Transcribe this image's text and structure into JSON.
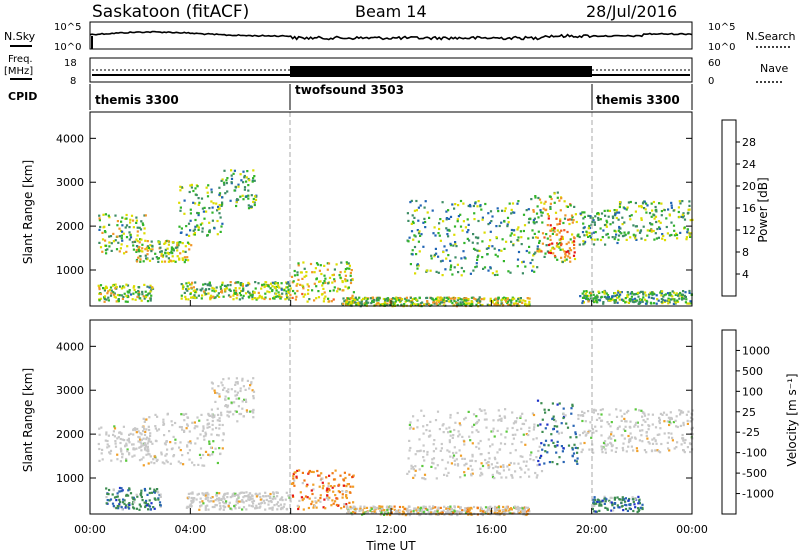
{
  "header": {
    "station": "Saskatoon (fitACF)",
    "beam": "Beam 14",
    "date": "28/Jul/2016"
  },
  "labels": {
    "nsky": "N.Sky",
    "nsearch": "N.Search",
    "freq_line1": "Freq.",
    "freq_line2": "[MHz]",
    "nave": "Nave",
    "cpid": "CPID"
  },
  "noise_panel": {
    "left_ticks": [
      "10^5",
      "10^0"
    ],
    "right_ticks": [
      "10^5",
      "10^0"
    ]
  },
  "freq_panel": {
    "left_ticks": [
      "18",
      "8"
    ],
    "right_ticks": [
      "60",
      "0"
    ]
  },
  "cpid_segments": [
    {
      "label": "themis 3300",
      "start_h": 0,
      "end_h": 8
    },
    {
      "label": "twofsound 3503",
      "start_h": 8,
      "end_h": 20
    },
    {
      "label": "themis 3300",
      "start_h": 20,
      "end_h": 24
    }
  ],
  "chart_data": [
    {
      "type": "heatmap",
      "name": "power",
      "xlabel": "",
      "ylabel": "Slant Range [km]",
      "xlim": [
        0,
        24
      ],
      "ylim": [
        180,
        4600
      ],
      "yticks": [
        1000,
        2000,
        3000,
        4000
      ],
      "colorbar": {
        "label": "Power [dB]",
        "ticks": [
          "4",
          "8",
          "12",
          "16",
          "20",
          "24",
          "28"
        ],
        "colors": [
          "#1428f0",
          "#2064b4",
          "#3c8c64",
          "#30b428",
          "#dcdc00",
          "#f09628",
          "#f05a1e",
          "#e61414"
        ]
      },
      "scatter_regions": [
        {
          "t0": 0.3,
          "t1": 2.2,
          "r0": 1400,
          "r1": 2300,
          "intensity": 0.45
        },
        {
          "t0": 1.8,
          "t1": 4.0,
          "r0": 1200,
          "r1": 1700,
          "intensity": 0.5
        },
        {
          "t0": 3.5,
          "t1": 5.3,
          "r0": 1800,
          "r1": 3000,
          "intensity": 0.4
        },
        {
          "t0": 5.2,
          "t1": 6.6,
          "r0": 2400,
          "r1": 3300,
          "intensity": 0.35
        },
        {
          "t0": 0.3,
          "t1": 2.5,
          "r0": 300,
          "r1": 700,
          "intensity": 0.45
        },
        {
          "t0": 3.6,
          "t1": 8.0,
          "r0": 350,
          "r1": 750,
          "intensity": 0.45
        },
        {
          "t0": 8.0,
          "t1": 10.5,
          "r0": 300,
          "r1": 1200,
          "intensity": 0.55
        },
        {
          "t0": 10.0,
          "t1": 17.5,
          "r0": 200,
          "r1": 400,
          "intensity": 0.5
        },
        {
          "t0": 12.6,
          "t1": 18.0,
          "r0": 900,
          "r1": 2600,
          "intensity": 0.35
        },
        {
          "t0": 17.5,
          "t1": 19.3,
          "r0": 1200,
          "r1": 2800,
          "intensity": 0.55
        },
        {
          "t0": 18.2,
          "t1": 19.3,
          "r0": 1300,
          "r1": 2200,
          "intensity": 0.85
        },
        {
          "t0": 19.3,
          "t1": 21.0,
          "r0": 1600,
          "r1": 2400,
          "intensity": 0.35
        },
        {
          "t0": 21.0,
          "t1": 24.0,
          "r0": 1700,
          "r1": 2600,
          "intensity": 0.4
        },
        {
          "t0": 19.5,
          "t1": 24.0,
          "r0": 250,
          "r1": 550,
          "intensity": 0.4
        }
      ]
    },
    {
      "type": "heatmap",
      "name": "velocity",
      "xlabel": "Time UT",
      "ylabel": "Slant Range [km]",
      "xlim": [
        0,
        24
      ],
      "ylim": [
        180,
        4600
      ],
      "yticks": [
        1000,
        2000,
        3000,
        4000
      ],
      "xticks": [
        "00:00",
        "04:00",
        "08:00",
        "12:00",
        "16:00",
        "20:00",
        "00:00"
      ],
      "colorbar": {
        "label": "Velocity [m s⁻¹]",
        "ticks": [
          "1000",
          "500",
          "100",
          "25",
          "-25",
          "-100",
          "-500",
          "-1000"
        ],
        "colors": [
          "#1e32c8",
          "#2864b4",
          "#3c8c50",
          "#5ac83c",
          "#c8c8c8",
          "#c8c8c8",
          "#f0a028",
          "#f07814",
          "#e61414"
        ]
      },
      "scatter_regions": [
        {
          "t0": 0.3,
          "t1": 2.4,
          "r0": 1400,
          "r1": 2200,
          "class": "ground"
        },
        {
          "t0": 2.0,
          "t1": 5.3,
          "r0": 1300,
          "r1": 2500,
          "class": "ground"
        },
        {
          "t0": 4.8,
          "t1": 6.5,
          "r0": 2300,
          "r1": 3300,
          "class": "ground"
        },
        {
          "t0": 0.6,
          "t1": 2.8,
          "r0": 300,
          "r1": 800,
          "class": "positive"
        },
        {
          "t0": 3.8,
          "t1": 8.0,
          "r0": 300,
          "r1": 700,
          "class": "ground"
        },
        {
          "t0": 8.0,
          "t1": 10.5,
          "r0": 300,
          "r1": 1200,
          "class": "negative"
        },
        {
          "t0": 10.2,
          "t1": 17.5,
          "r0": 180,
          "r1": 380,
          "class": "mixed"
        },
        {
          "t0": 12.6,
          "t1": 18.0,
          "r0": 1000,
          "r1": 2600,
          "class": "ground"
        },
        {
          "t0": 17.8,
          "t1": 19.4,
          "r0": 1300,
          "r1": 2800,
          "class": "positive"
        },
        {
          "t0": 19.4,
          "t1": 24.0,
          "r0": 1600,
          "r1": 2600,
          "class": "ground"
        },
        {
          "t0": 20.0,
          "t1": 22.0,
          "r0": 250,
          "r1": 600,
          "class": "positive"
        }
      ]
    }
  ]
}
